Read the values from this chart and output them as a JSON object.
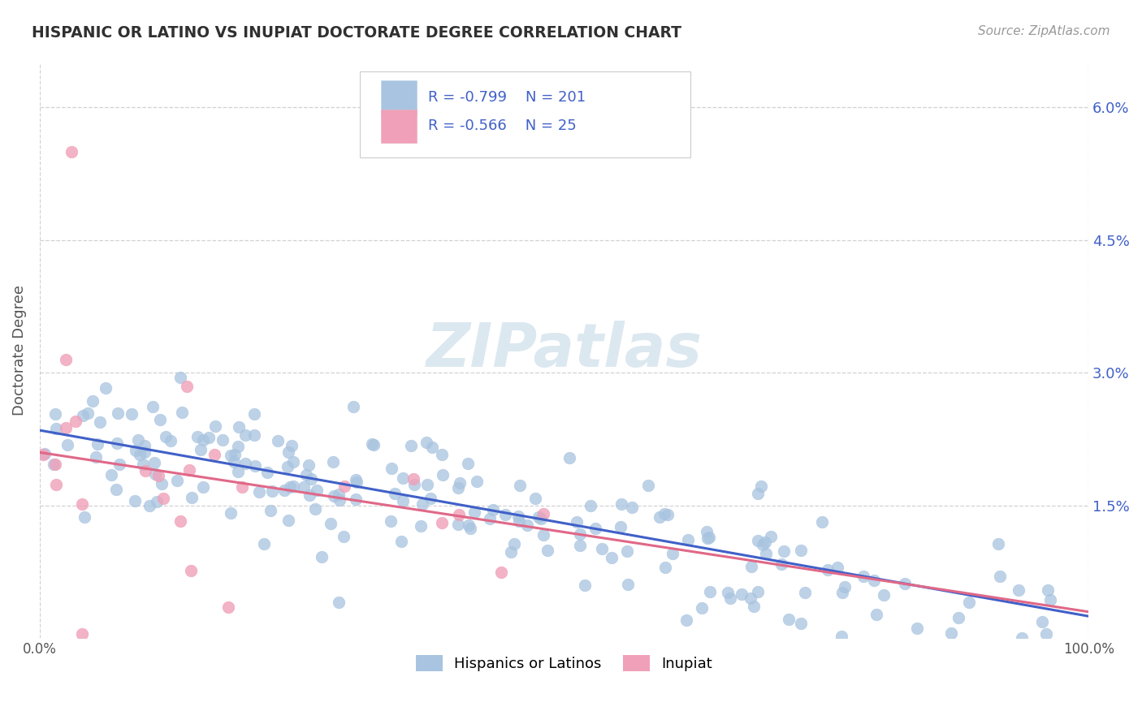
{
  "title": "HISPANIC OR LATINO VS INUPIAT DOCTORATE DEGREE CORRELATION CHART",
  "source": "Source: ZipAtlas.com",
  "ylabel": "Doctorate Degree",
  "legend_label_1": "Hispanics or Latinos",
  "legend_label_2": "Inupiat",
  "r1": -0.799,
  "n1": 201,
  "r2": -0.566,
  "n2": 25,
  "color_blue": "#a8c4e0",
  "color_pink": "#f0a0b8",
  "color_blue_line": "#4060c8",
  "color_pink_line": "#e06888",
  "color_axis_labels": "#4060c8",
  "color_title": "#303030",
  "background_color": "#ffffff",
  "grid_color": "#cccccc",
  "xlim": [
    0,
    100
  ],
  "ylim": [
    0,
    6.5
  ],
  "blue_intercept": 2.35,
  "blue_slope": -0.021,
  "pink_intercept": 2.1,
  "pink_slope": -0.018
}
